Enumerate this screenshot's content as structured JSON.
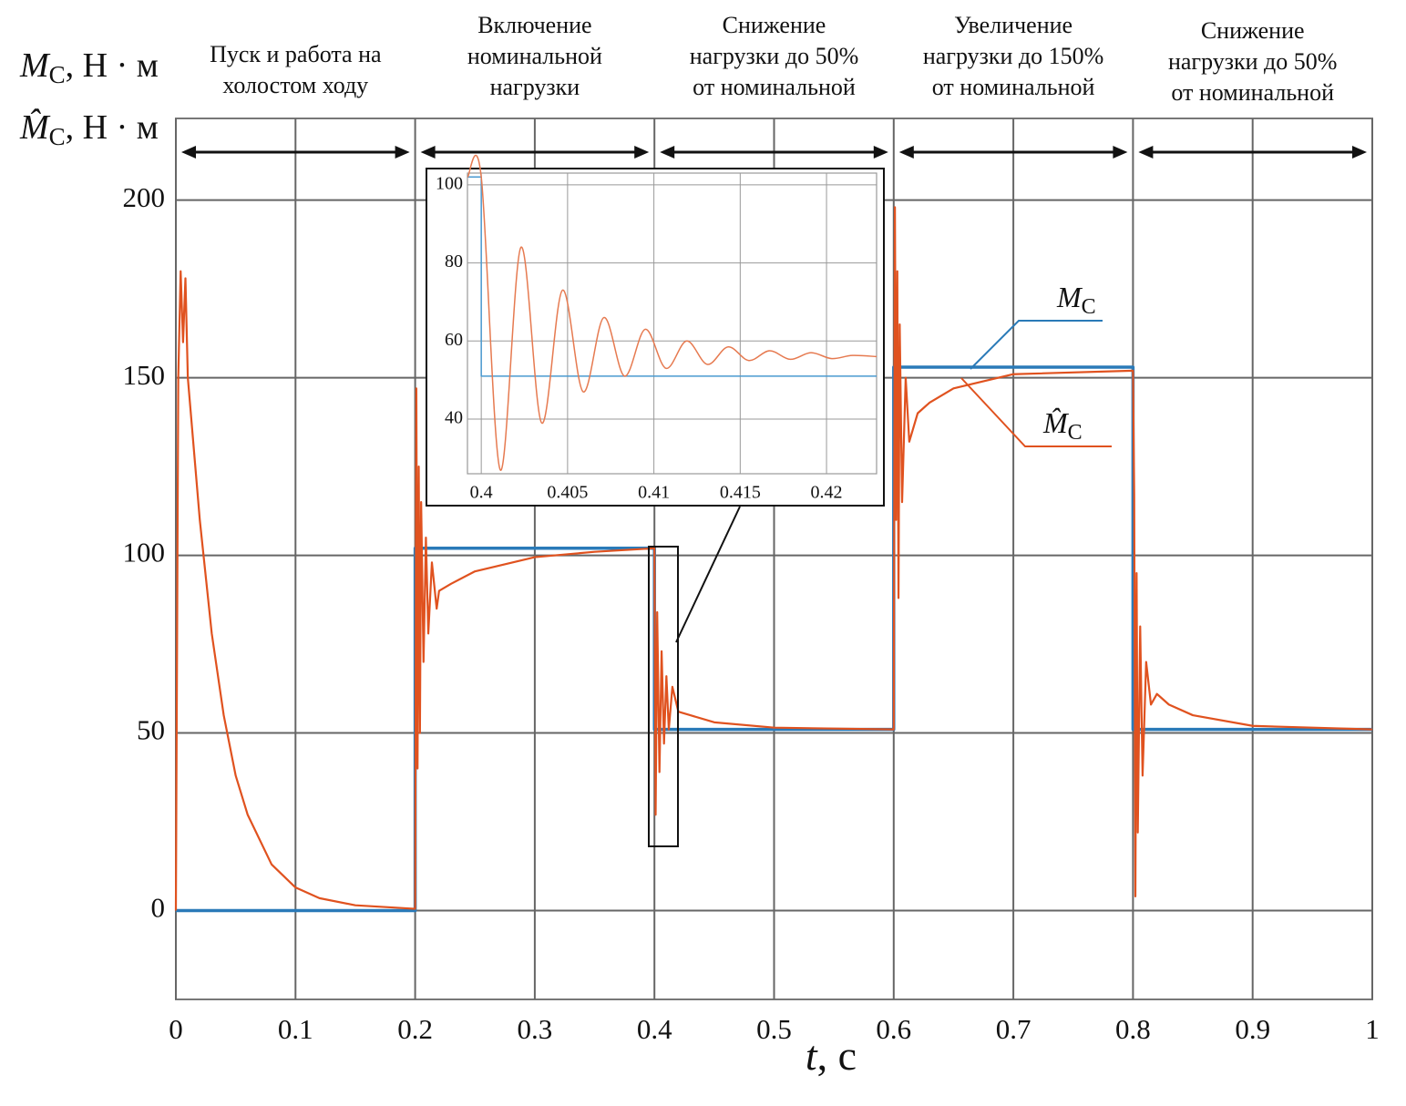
{
  "chart_data": {
    "type": "line",
    "ylabels": [
      {
        "symbol": "M",
        "subscript": "C",
        "unit": ", Н · м"
      },
      {
        "symbol": "M̂",
        "subscript": "C",
        "unit": ", Н · м"
      }
    ],
    "xlabel": {
      "symbol": "t",
      "unit": ", с"
    },
    "xlim": [
      0,
      1
    ],
    "ylim": [
      -25,
      223
    ],
    "xticks": [
      0,
      0.1,
      0.2,
      0.3,
      0.4,
      0.5,
      0.6,
      0.7,
      0.8,
      0.9,
      1
    ],
    "yticks": [
      0,
      50,
      100,
      150,
      200
    ],
    "grid": true,
    "phases": [
      {
        "label": [
          "Пуск и работа на",
          "холостом ходу"
        ],
        "range": [
          0,
          0.2
        ]
      },
      {
        "label": [
          "Включение",
          "номинальной",
          "нагрузки"
        ],
        "range": [
          0.2,
          0.4
        ]
      },
      {
        "label": [
          "Снижение",
          "нагрузки до 50%",
          "от номинальной"
        ],
        "range": [
          0.4,
          0.6
        ]
      },
      {
        "label": [
          "Увеличение",
          "нагрузки до 150%",
          "от номинальной"
        ],
        "range": [
          0.6,
          0.8
        ]
      },
      {
        "label": [
          "Снижение",
          "нагрузки до 50%",
          "от номинальной"
        ],
        "range": [
          0.8,
          1
        ]
      }
    ],
    "series": [
      {
        "name": "M",
        "subscript": "C",
        "color": "#2a7ab8",
        "x": [
          0,
          0.2,
          0.2,
          0.4,
          0.4,
          0.6,
          0.6,
          0.8,
          0.8,
          1
        ],
        "values": [
          0,
          0,
          102,
          102,
          51,
          51,
          153,
          153,
          51,
          51
        ]
      },
      {
        "name": "M̂",
        "subscript": "C",
        "color": "#e0521f",
        "x": [
          0,
          0.002,
          0.004,
          0.006,
          0.008,
          0.01,
          0.02,
          0.03,
          0.04,
          0.05,
          0.06,
          0.08,
          0.1,
          0.12,
          0.15,
          0.2,
          0.201,
          0.202,
          0.203,
          0.204,
          0.205,
          0.207,
          0.209,
          0.211,
          0.214,
          0.218,
          0.22,
          0.23,
          0.25,
          0.3,
          0.35,
          0.4,
          0.401,
          0.4023,
          0.4042,
          0.406,
          0.408,
          0.41,
          0.412,
          0.415,
          0.42,
          0.43,
          0.45,
          0.5,
          0.6,
          0.601,
          0.602,
          0.603,
          0.604,
          0.605,
          0.607,
          0.61,
          0.613,
          0.62,
          0.63,
          0.65,
          0.7,
          0.8,
          0.801,
          0.802,
          0.803,
          0.804,
          0.806,
          0.808,
          0.811,
          0.815,
          0.82,
          0.83,
          0.85,
          0.9,
          1
        ],
        "values": [
          0,
          150,
          180,
          160,
          178,
          150,
          110,
          78,
          55,
          38,
          27,
          13,
          6.5,
          3.5,
          1.5,
          0.5,
          147,
          40,
          125,
          50,
          115,
          70,
          105,
          78,
          98,
          85,
          90,
          92,
          95.5,
          99.5,
          101,
          102,
          27,
          84,
          39,
          73,
          47,
          66,
          51,
          63,
          56,
          55,
          53,
          51.5,
          51,
          198,
          110,
          180,
          88,
          165,
          115,
          150,
          132,
          140,
          143,
          147,
          151,
          152,
          117,
          4,
          95,
          22,
          80,
          38,
          70,
          58,
          61,
          58,
          55,
          52,
          51
        ]
      }
    ],
    "inset": {
      "xlim": [
        0.3992,
        0.4229
      ],
      "ylim": [
        26,
        103
      ],
      "xticks": [
        0.4,
        0.405,
        0.41,
        0.415,
        0.42
      ],
      "yticks": [
        40,
        60,
        80,
        100
      ],
      "grid": true,
      "series": [
        {
          "color": "#4a9ad0",
          "x": [
            0.3992,
            0.4,
            0.4,
            0.4229
          ],
          "values": [
            102,
            102,
            51,
            51
          ]
        },
        {
          "color": "#e67a50",
          "x": [
            0.3992,
            0.4,
            0.4011,
            0.4023,
            0.4035,
            0.4047,
            0.4059,
            0.4071,
            0.4083,
            0.4095,
            0.4107,
            0.4119,
            0.4131,
            0.4143,
            0.4155,
            0.4167,
            0.4179,
            0.4191,
            0.4203,
            0.4215,
            0.4229
          ],
          "values": [
            102,
            102,
            27,
            84,
            39,
            73,
            47,
            66,
            51,
            63,
            53,
            60,
            54,
            58.5,
            55,
            57.5,
            55.3,
            57,
            55.5,
            56.3,
            56
          ]
        }
      ]
    }
  }
}
